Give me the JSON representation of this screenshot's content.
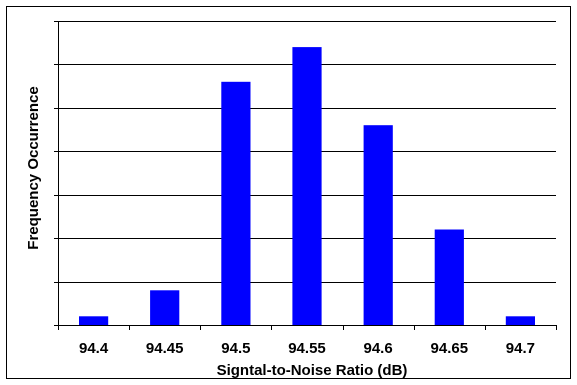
{
  "chart_data": {
    "type": "bar",
    "categories": [
      "94.4",
      "94.45",
      "94.5",
      "94.55",
      "94.6",
      "94.65",
      "94.7"
    ],
    "values": [
      2,
      8,
      56,
      64,
      46,
      22,
      2
    ],
    "xlabel": "Signtal-to-Noise Ratio (dB)",
    "ylabel": "Frequency Occurrence",
    "ylim": [
      0,
      70
    ],
    "y_tick_step": 10,
    "y_tick_labels_shown": false,
    "grid": "horizontal",
    "legend": "none",
    "bar_color": "#0000FF",
    "border_color": "#000000"
  }
}
